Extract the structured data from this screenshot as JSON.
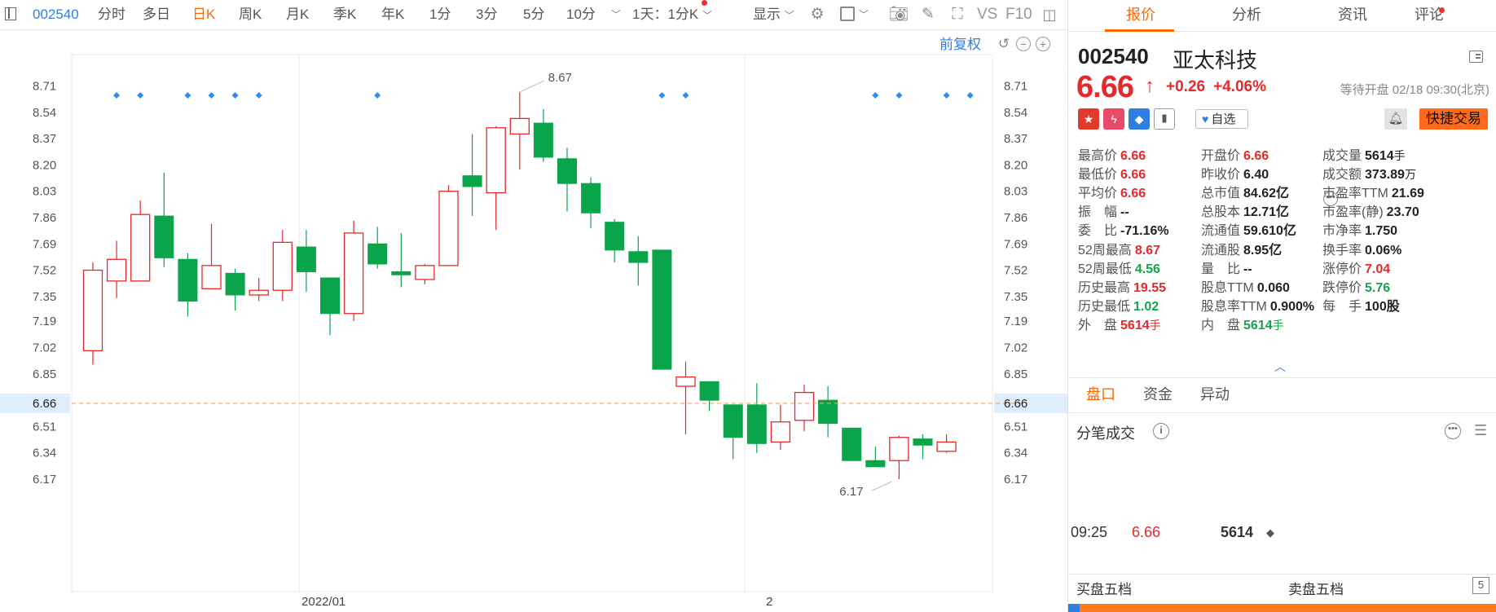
{
  "toolbar": {
    "stock_code": "002540",
    "periods": [
      "分时",
      "多日",
      "日K",
      "周K",
      "月K",
      "季K",
      "年K",
      "1分",
      "3分",
      "5分",
      "10分"
    ],
    "active_period": "日K",
    "interval_select": "1天：1分K",
    "display_label": "显示",
    "vs_label": "VS",
    "f10_label": "F10"
  },
  "chart": {
    "fuquan_label": "前复权",
    "reset_icon": "undo-icon",
    "zoom_out_icon": "minus-circle-icon",
    "zoom_in_icon": "plus-circle-icon"
  },
  "chart_data": {
    "type": "candlestick",
    "y_ticks": [
      8.71,
      8.54,
      8.37,
      8.2,
      8.03,
      7.86,
      7.69,
      7.52,
      7.35,
      7.19,
      7.02,
      6.85,
      6.66,
      6.51,
      6.34,
      6.17
    ],
    "highlight_price": 6.66,
    "ylim": [
      6.01,
      8.83
    ],
    "x_labels": [
      {
        "label": "2022/01",
        "index": 8.7
      },
      {
        "label": "2",
        "index": 27.5
      }
    ],
    "max_label": {
      "value": "8.67",
      "index": 18
    },
    "min_label": {
      "value": "6.17",
      "index": 33
    },
    "event_markers": [
      1,
      2,
      4,
      5,
      6,
      7,
      12,
      24,
      25,
      33,
      34,
      36,
      37
    ],
    "candles": [
      {
        "o": 7.0,
        "h": 7.57,
        "l": 6.91,
        "c": 7.52
      },
      {
        "o": 7.45,
        "h": 7.71,
        "l": 7.34,
        "c": 7.59
      },
      {
        "o": 7.45,
        "h": 7.97,
        "l": 7.45,
        "c": 7.88
      },
      {
        "o": 7.87,
        "h": 8.15,
        "l": 7.54,
        "c": 7.6
      },
      {
        "o": 7.59,
        "h": 7.63,
        "l": 7.22,
        "c": 7.32
      },
      {
        "o": 7.4,
        "h": 7.82,
        "l": 7.4,
        "c": 7.55
      },
      {
        "o": 7.5,
        "h": 7.53,
        "l": 7.26,
        "c": 7.36
      },
      {
        "o": 7.36,
        "h": 7.47,
        "l": 7.32,
        "c": 7.39
      },
      {
        "o": 7.39,
        "h": 7.78,
        "l": 7.32,
        "c": 7.7
      },
      {
        "o": 7.67,
        "h": 7.78,
        "l": 7.38,
        "c": 7.51
      },
      {
        "o": 7.47,
        "h": 7.47,
        "l": 7.1,
        "c": 7.24
      },
      {
        "o": 7.24,
        "h": 7.84,
        "l": 7.19,
        "c": 7.76
      },
      {
        "o": 7.69,
        "h": 7.8,
        "l": 7.53,
        "c": 7.56
      },
      {
        "o": 7.51,
        "h": 7.76,
        "l": 7.41,
        "c": 7.49
      },
      {
        "o": 7.46,
        "h": 7.56,
        "l": 7.43,
        "c": 7.55
      },
      {
        "o": 7.55,
        "h": 8.07,
        "l": 7.55,
        "c": 8.03
      },
      {
        "o": 8.13,
        "h": 8.4,
        "l": 7.87,
        "c": 8.06
      },
      {
        "o": 8.02,
        "h": 8.45,
        "l": 7.78,
        "c": 8.44
      },
      {
        "o": 8.4,
        "h": 8.67,
        "l": 8.17,
        "c": 8.5
      },
      {
        "o": 8.47,
        "h": 8.56,
        "l": 8.22,
        "c": 8.25
      },
      {
        "o": 8.24,
        "h": 8.31,
        "l": 7.9,
        "c": 8.08
      },
      {
        "o": 8.08,
        "h": 8.12,
        "l": 7.79,
        "c": 7.89
      },
      {
        "o": 7.83,
        "h": 7.85,
        "l": 7.57,
        "c": 7.65
      },
      {
        "o": 7.64,
        "h": 7.74,
        "l": 7.42,
        "c": 7.57
      },
      {
        "o": 7.65,
        "h": 7.65,
        "l": 6.88,
        "c": 6.88
      },
      {
        "o": 6.77,
        "h": 6.93,
        "l": 6.46,
        "c": 6.83
      },
      {
        "o": 6.8,
        "h": 6.8,
        "l": 6.61,
        "c": 6.68
      },
      {
        "o": 6.65,
        "h": 6.65,
        "l": 6.3,
        "c": 6.44
      },
      {
        "o": 6.65,
        "h": 6.79,
        "l": 6.34,
        "c": 6.4
      },
      {
        "o": 6.41,
        "h": 6.65,
        "l": 6.36,
        "c": 6.54
      },
      {
        "o": 6.55,
        "h": 6.78,
        "l": 6.48,
        "c": 6.73
      },
      {
        "o": 6.68,
        "h": 6.77,
        "l": 6.44,
        "c": 6.53
      },
      {
        "o": 6.5,
        "h": 6.5,
        "l": 6.29,
        "c": 6.29
      },
      {
        "o": 6.29,
        "h": 6.38,
        "l": 6.26,
        "c": 6.25
      },
      {
        "o": 6.29,
        "h": 6.45,
        "l": 6.17,
        "c": 6.44
      },
      {
        "o": 6.43,
        "h": 6.46,
        "l": 6.3,
        "c": 6.39
      },
      {
        "o": 6.35,
        "h": 6.46,
        "l": 6.34,
        "c": 6.41
      }
    ]
  },
  "panel": {
    "tabs": [
      "报价",
      "分析",
      "资讯",
      "评论"
    ],
    "active_tab": "报价",
    "code": "002540",
    "name": "亚太科技",
    "price": "6.66",
    "arrow": "↑",
    "change": "+0.26",
    "change_pct": "+4.06%",
    "status": "等待开盘 02/18 09:30(北京)",
    "zixuan_label": "自选",
    "quick_trade_label": "快捷交易",
    "quote_rows": [
      [
        {
          "label": "最高价",
          "value": "6.66",
          "color": "red"
        },
        {
          "label": "开盘价",
          "value": "6.66",
          "color": "red"
        },
        {
          "label": "成交量",
          "value": "5614",
          "unit": "手",
          "color": ""
        }
      ],
      [
        {
          "label": "最低价",
          "value": "6.66",
          "color": "red"
        },
        {
          "label": "昨收价",
          "value": "6.40",
          "color": ""
        },
        {
          "label": "成交额",
          "value": "373.89",
          "unit": "万",
          "color": ""
        }
      ],
      [
        {
          "label": "平均价",
          "value": "6.66",
          "color": "red"
        },
        {
          "label": "总市值",
          "value": "84.62亿",
          "color": ""
        },
        {
          "label": "市盈率TTM",
          "value": "21.69",
          "color": ""
        }
      ],
      [
        {
          "label": "振　幅",
          "value": "--",
          "color": ""
        },
        {
          "label": "总股本",
          "value": "12.71亿",
          "color": ""
        },
        {
          "label": "市盈率(静)",
          "value": "23.70",
          "color": ""
        }
      ],
      [
        {
          "label": "委　比",
          "value": "-71.16%",
          "color": ""
        },
        {
          "label": "流通值",
          "value": "59.610亿",
          "color": ""
        },
        {
          "label": "市净率",
          "value": "1.750",
          "color": ""
        }
      ],
      [
        {
          "label": "52周最高",
          "value": "8.67",
          "color": "red"
        },
        {
          "label": "流通股",
          "value": "8.95亿",
          "color": ""
        },
        {
          "label": "换手率",
          "value": "0.06%",
          "color": ""
        }
      ],
      [
        {
          "label": "52周最低",
          "value": "4.56",
          "color": "green"
        },
        {
          "label": "量　比",
          "value": "--",
          "color": ""
        },
        {
          "label": "涨停价",
          "value": "7.04",
          "color": "red"
        }
      ],
      [
        {
          "label": "历史最高",
          "value": "19.55",
          "color": "red"
        },
        {
          "label": "股息TTM",
          "value": "0.060",
          "color": ""
        },
        {
          "label": "跌停价",
          "value": "5.76",
          "color": "green"
        }
      ],
      [
        {
          "label": "历史最低",
          "value": "1.02",
          "color": "green"
        },
        {
          "label": "股息率TTM",
          "value": "0.900%",
          "color": ""
        },
        {
          "label": "每　手",
          "value": "100股",
          "color": ""
        }
      ],
      [
        {
          "label": "外　盘",
          "value": "5614",
          "unit": "手",
          "color": "red"
        },
        {
          "label": "内　盘",
          "value": "5614",
          "unit": "手",
          "color": "green"
        },
        null
      ]
    ],
    "sub_tabs": [
      "盘口",
      "资金",
      "异动"
    ],
    "active_sub_tab": "盘口",
    "ticks_title": "分笔成交",
    "tick": {
      "time": "09:25",
      "price": "6.66",
      "volume": "5614",
      "dir": "◆"
    },
    "buy_five": "买盘五档",
    "sell_five": "卖盘五档",
    "five_label": "5"
  },
  "colors": {
    "up": "#e8282b",
    "down": "#0aa44a",
    "accent": "#ff6600",
    "link": "#2f7fe0"
  }
}
